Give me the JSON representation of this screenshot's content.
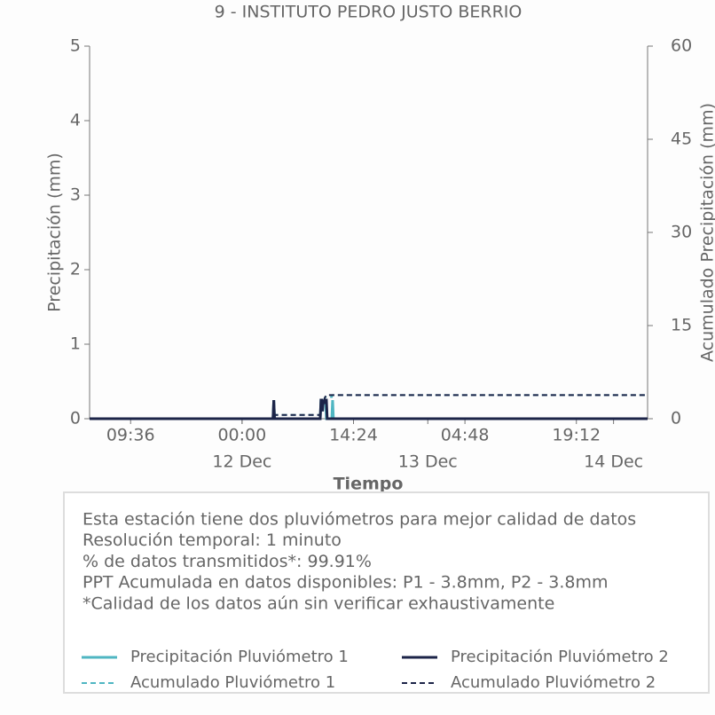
{
  "chart_data": {
    "type": "line",
    "title": "9 - INSTITUTO PEDRO JUSTO BERRIO",
    "xlabel": "Tiempo",
    "ylabel": "Precipitación (mm)",
    "y2label": "Acumulado Precipitación (mm)",
    "x": [
      -19.7,
      4.0,
      4.1,
      4.2,
      10.1,
      10.2,
      10.3,
      10.4,
      10.5,
      10.6,
      10.7,
      10.8,
      10.9,
      11.0,
      11.6,
      11.7,
      11.8,
      52.4
    ],
    "xlim": [
      -19.7,
      52.4
    ],
    "xticks": [
      {
        "value": -14.4,
        "label": "09:36"
      },
      {
        "value": 0,
        "label": "00:00"
      },
      {
        "value": 14.4,
        "label": "14:24"
      },
      {
        "value": 28.8,
        "label": "04:48"
      },
      {
        "value": 43.2,
        "label": "19:12"
      }
    ],
    "xticks_days": [
      {
        "value": 0,
        "label": "12 Dec"
      },
      {
        "value": 24,
        "label": "13 Dec"
      },
      {
        "value": 48,
        "label": "14 Dec"
      }
    ],
    "ylim": [
      0,
      5
    ],
    "yticks": [
      0,
      1,
      2,
      3,
      4,
      5
    ],
    "y2lim": [
      0,
      60
    ],
    "y2ticks": [
      0,
      15,
      30,
      45,
      60
    ],
    "series": [
      {
        "name": "Precipitación Pluviómetro 1",
        "color": "#4fb6c2",
        "dash": false,
        "values": [
          0,
          0,
          0.25,
          0,
          0,
          0.25,
          0.25,
          0.1,
          0.25,
          0.2,
          0.25,
          0.25,
          0,
          0,
          0,
          0.25,
          0,
          0
        ]
      },
      {
        "name": "Acumulado Pluviómetro 1",
        "color": "#4fb6c2",
        "dash": true,
        "axis": "y2",
        "values": [
          0,
          0,
          0.6,
          0.6,
          0.6,
          1.2,
          1.8,
          2.0,
          2.6,
          3.0,
          3.4,
          3.5,
          3.5,
          3.5,
          3.5,
          3.8,
          3.8,
          3.8
        ]
      },
      {
        "name": "Precipitación Pluviómetro 2",
        "color": "#1c2448",
        "dash": false,
        "values": [
          0,
          0,
          0.25,
          0,
          0,
          0.25,
          0.25,
          0.1,
          0.25,
          0.2,
          0.25,
          0.25,
          0.25,
          0,
          0,
          0,
          0,
          0
        ]
      },
      {
        "name": "Acumulado Pluviómetro 2",
        "color": "#1c2448",
        "dash": true,
        "axis": "y2",
        "values": [
          0,
          0,
          0.6,
          0.6,
          0.6,
          1.2,
          1.8,
          2.0,
          2.6,
          3.0,
          3.4,
          3.6,
          3.8,
          3.8,
          3.8,
          3.8,
          3.8,
          3.8
        ]
      }
    ],
    "notes": [
      "Esta estación tiene dos pluviómetros para mejor calidad de datos",
      "Resolución temporal: 1 minuto",
      "% de datos transmitidos*: 99.91%",
      "PPT Acumulada en datos disponibles: P1 - 3.8mm, P2 - 3.8mm",
      "*Calidad de los datos aún sin verificar exhaustivamente"
    ]
  }
}
